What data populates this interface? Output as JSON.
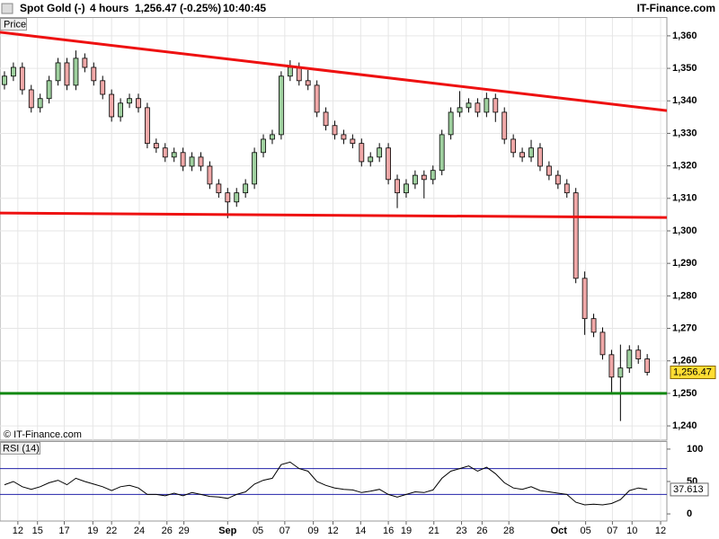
{
  "chart_data": {
    "type": "candlestick",
    "title": "Spot Gold (-)",
    "interval": "4 hours",
    "quote": "1,256.47 (-0.25%)",
    "time": "10:40:45",
    "brand": "IT-Finance.com",
    "copyright": "© IT-Finance.com",
    "price_label": "Price",
    "last_price_label": "1,256.47",
    "up_color": "#9fd09f",
    "down_color": "#f0a8a8",
    "xlim": [
      -0.5,
      74.2
    ],
    "xticks": [
      {
        "value": 1.5,
        "label": "12"
      },
      {
        "value": 3.7,
        "label": "15"
      },
      {
        "value": 6.7,
        "label": "17"
      },
      {
        "value": 9.9,
        "label": "19"
      },
      {
        "value": 12,
        "label": "22"
      },
      {
        "value": 15.1,
        "label": "24"
      },
      {
        "value": 18.2,
        "label": "26"
      },
      {
        "value": 20.1,
        "label": "29"
      },
      {
        "value": 25,
        "label": "Sep"
      },
      {
        "value": 28.4,
        "label": "05"
      },
      {
        "value": 31.4,
        "label": "07"
      },
      {
        "value": 34.6,
        "label": "09"
      },
      {
        "value": 36.8,
        "label": "12"
      },
      {
        "value": 39.9,
        "label": "14"
      },
      {
        "value": 43,
        "label": "16"
      },
      {
        "value": 45,
        "label": "19"
      },
      {
        "value": 48.1,
        "label": "21"
      },
      {
        "value": 51.2,
        "label": "23"
      },
      {
        "value": 53.5,
        "label": "26"
      },
      {
        "value": 56.5,
        "label": "28"
      },
      {
        "value": 62.1,
        "label": "Oct"
      },
      {
        "value": 65.1,
        "label": "05"
      },
      {
        "value": 68.1,
        "label": "07"
      },
      {
        "value": 70.3,
        "label": "10"
      },
      {
        "value": 73.5,
        "label": "12"
      }
    ],
    "ylim": [
      1235.6,
      1365.5
    ],
    "yticks": [
      {
        "value": 1240,
        "label": "1,240"
      },
      {
        "value": 1250,
        "label": "1,250"
      },
      {
        "value": 1260,
        "label": "1,260"
      },
      {
        "value": 1270,
        "label": "1,270"
      },
      {
        "value": 1280,
        "label": "1,280"
      },
      {
        "value": 1290,
        "label": "1,290"
      },
      {
        "value": 1300,
        "label": "1,300"
      },
      {
        "value": 1310,
        "label": "1,310"
      },
      {
        "value": 1320,
        "label": "1,320"
      },
      {
        "value": 1330,
        "label": "1,330"
      },
      {
        "value": 1340,
        "label": "1,340"
      },
      {
        "value": 1350,
        "label": "1,350"
      },
      {
        "value": 1360,
        "label": "1,360"
      }
    ],
    "open": [
      1345,
      1347.6,
      1350.3,
      1343.4,
      1337.9,
      1340.7,
      1346.2,
      1351.7,
      1344.8,
      1353.1,
      1350.3,
      1346.2,
      1342,
      1335.1,
      1339.3,
      1340.7,
      1337.9,
      1326.9,
      1325.5,
      1322.7,
      1324.1,
      1319.9,
      1322.7,
      1319.9,
      1314.4,
      1311.7,
      1308.9,
      1311.7,
      1314.4,
      1324.1,
      1328.2,
      1329.6,
      1347.6,
      1350.3,
      1346.2,
      1344.8,
      1336.5,
      1332.4,
      1329.6,
      1328.2,
      1326.9,
      1321.3,
      1322.7,
      1325.5,
      1315.8,
      1311.7,
      1314.4,
      1317.1,
      1315.8,
      1318.6,
      1329.6,
      1336.5,
      1337.9,
      1339.3,
      1336.5,
      1340.7,
      1336.5,
      1328.2,
      1324.1,
      1322.7,
      1325.5,
      1319.9,
      1317.1,
      1314.4,
      1311.7,
      1285.4,
      1273,
      1268.8,
      1261.9,
      1255,
      1257.8,
      1263.3,
      1260.6
    ],
    "high": [
      1349.1,
      1351.8,
      1351.8,
      1344.9,
      1342.2,
      1347.7,
      1353.2,
      1353.2,
      1355.5,
      1354.6,
      1351.8,
      1347.7,
      1343.5,
      1340.8,
      1342.2,
      1342.2,
      1339.4,
      1328.4,
      1327,
      1325.6,
      1325.6,
      1324.2,
      1324.2,
      1321.4,
      1315.9,
      1313.2,
      1313.2,
      1315.9,
      1325.6,
      1329.7,
      1331.1,
      1349.1,
      1352.5,
      1351.8,
      1349.5,
      1346.3,
      1338,
      1333.9,
      1331.1,
      1329.7,
      1328.4,
      1324.2,
      1327,
      1327,
      1317.3,
      1315.9,
      1318.6,
      1318.6,
      1320.1,
      1331.1,
      1338,
      1343,
      1340.8,
      1340.8,
      1342.5,
      1342.2,
      1338,
      1329.7,
      1325.6,
      1328,
      1327,
      1321.4,
      1318.6,
      1315.9,
      1313.2,
      1287.5,
      1274.5,
      1270.3,
      1263.4,
      1265,
      1264.8,
      1264.8,
      1262.1
    ],
    "low": [
      1343.5,
      1346.1,
      1341.9,
      1336.4,
      1336.4,
      1339.2,
      1344.7,
      1343.3,
      1343.3,
      1348.8,
      1344.7,
      1340.5,
      1333.6,
      1333.6,
      1337.8,
      1336.4,
      1325.4,
      1324,
      1321.2,
      1321.2,
      1318.4,
      1318.4,
      1318.4,
      1312.9,
      1310.2,
      1303.9,
      1307.4,
      1310.2,
      1312.9,
      1322.6,
      1326.7,
      1328.1,
      1346.1,
      1344.7,
      1343.3,
      1335,
      1330.9,
      1328.1,
      1326.7,
      1325.4,
      1319.8,
      1319.8,
      1321.2,
      1314.3,
      1307,
      1310.2,
      1312.9,
      1310,
      1314.3,
      1317.1,
      1328.1,
      1335,
      1336.4,
      1335,
      1335,
      1333.5,
      1326.7,
      1322.6,
      1321.2,
      1321.2,
      1318.4,
      1315.6,
      1312.9,
      1310.2,
      1283.9,
      1268,
      1267.3,
      1260.4,
      1250.3,
      1241.5,
      1256.3,
      1259.1,
      1255.5
    ],
    "close": [
      1347.6,
      1350.3,
      1343.4,
      1337.9,
      1340.7,
      1346.2,
      1351.7,
      1344.8,
      1353.1,
      1350.3,
      1346.2,
      1342,
      1335.1,
      1339.3,
      1340.7,
      1337.9,
      1326.9,
      1325.5,
      1322.7,
      1324.1,
      1319.9,
      1322.7,
      1319.9,
      1314.4,
      1311.7,
      1308.9,
      1311.7,
      1314.4,
      1324.1,
      1328.2,
      1329.6,
      1347.6,
      1350.3,
      1346.2,
      1344.8,
      1336.5,
      1332.4,
      1329.6,
      1328.2,
      1326.9,
      1321.3,
      1322.7,
      1325.5,
      1315.8,
      1311.7,
      1314.4,
      1317.1,
      1315.8,
      1318.6,
      1329.6,
      1336.5,
      1337.9,
      1339.3,
      1336.5,
      1340.7,
      1336.5,
      1328.2,
      1324.1,
      1322.7,
      1325.5,
      1319.9,
      1317.1,
      1314.4,
      1311.7,
      1285.4,
      1273,
      1268.8,
      1261.9,
      1255,
      1257.8,
      1263.3,
      1260.6,
      1256.47
    ],
    "trend_lines": [
      {
        "color": "#ee1111",
        "points": [
          [
            -0.5,
            1361.1
          ],
          [
            74.2,
            1337
          ]
        ]
      },
      {
        "color": "#ee1111",
        "points": [
          [
            -0.5,
            1305.5
          ],
          [
            74.2,
            1304.1
          ]
        ]
      },
      {
        "color": "#118811",
        "points": [
          [
            -0.5,
            1250
          ],
          [
            74.2,
            1250
          ]
        ]
      }
    ],
    "rsi": {
      "name": "RSI (14)",
      "color": "#000000",
      "level_color": "#2222aa",
      "ylim": [
        -11,
        111
      ],
      "yticks": [
        0,
        50,
        100
      ],
      "levels": [
        30,
        70
      ],
      "values": [
        45,
        50,
        42,
        38,
        42,
        48,
        52,
        45,
        55,
        50,
        46,
        42,
        36,
        42,
        44,
        40,
        30,
        30,
        28,
        32,
        28,
        33,
        30,
        27,
        26,
        24,
        30,
        34,
        46,
        52,
        55,
        76,
        80,
        70,
        66,
        50,
        44,
        40,
        38,
        37,
        33,
        35,
        38,
        30,
        26,
        30,
        34,
        33,
        37,
        55,
        66,
        70,
        74,
        66,
        72,
        62,
        48,
        40,
        38,
        42,
        36,
        34,
        32,
        30,
        18,
        14,
        15,
        14,
        16,
        22,
        36,
        40,
        37.613
      ]
    }
  }
}
